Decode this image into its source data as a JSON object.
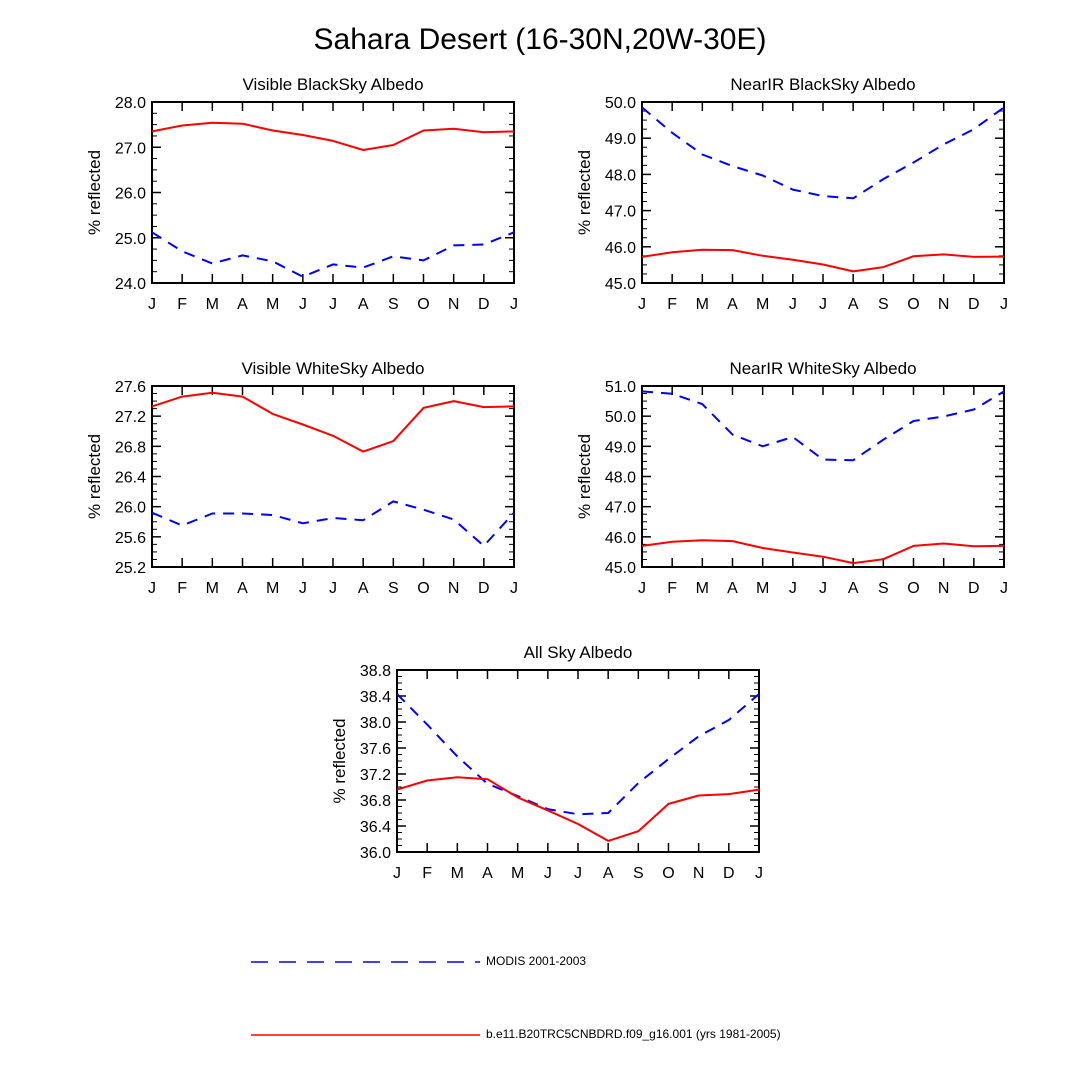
{
  "title": "Sahara Desert (16-30N,20W-30E)",
  "chart_data": [
    {
      "type": "line",
      "title": "Visible BlackSky Albedo",
      "ylabel": "% reflected",
      "xlabel": "",
      "categories": [
        "J",
        "F",
        "M",
        "A",
        "M",
        "J",
        "J",
        "A",
        "S",
        "O",
        "N",
        "D",
        "J"
      ],
      "ylim": [
        24.0,
        28.0
      ],
      "yticks": [
        "24.0",
        "25.0",
        "26.0",
        "27.0",
        "28.0"
      ],
      "series": [
        {
          "name": "MODIS 2001-2003",
          "color": "#0000ff",
          "dash": "dashed",
          "values": [
            25.12,
            24.7,
            24.43,
            24.61,
            24.48,
            24.14,
            24.41,
            24.34,
            24.59,
            24.5,
            24.83,
            24.85,
            25.12
          ]
        },
        {
          "name": "b.e11.B20TRC5CNBDRD.f09_g16.001 (yrs 1981-2005)",
          "color": "#ff0000",
          "dash": "solid",
          "values": [
            27.35,
            27.48,
            27.54,
            27.52,
            27.37,
            27.27,
            27.14,
            26.94,
            27.05,
            27.37,
            27.41,
            27.33,
            27.35
          ]
        }
      ]
    },
    {
      "type": "line",
      "title": "NearIR BlackSky Albedo",
      "ylabel": "% reflected",
      "xlabel": "",
      "categories": [
        "J",
        "F",
        "M",
        "A",
        "M",
        "J",
        "J",
        "A",
        "S",
        "O",
        "N",
        "D",
        "J"
      ],
      "ylim": [
        45.0,
        50.0
      ],
      "yticks": [
        "45.0",
        "46.0",
        "47.0",
        "48.0",
        "49.0",
        "50.0"
      ],
      "series": [
        {
          "name": "MODIS 2001-2003",
          "color": "#0000ff",
          "dash": "dashed",
          "values": [
            49.85,
            49.15,
            48.55,
            48.23,
            47.97,
            47.58,
            47.4,
            47.34,
            47.87,
            48.33,
            48.83,
            49.25,
            49.85
          ]
        },
        {
          "name": "b.e11.B20TRC5CNBDRD.f09_g16.001 (yrs 1981-2005)",
          "color": "#ff0000",
          "dash": "solid",
          "values": [
            45.72,
            45.85,
            45.92,
            45.91,
            45.75,
            45.64,
            45.51,
            45.32,
            45.44,
            45.74,
            45.79,
            45.72,
            45.73
          ]
        }
      ]
    },
    {
      "type": "line",
      "title": "Visible WhiteSky Albedo",
      "ylabel": "% reflected",
      "xlabel": "",
      "categories": [
        "J",
        "F",
        "M",
        "A",
        "M",
        "J",
        "J",
        "A",
        "S",
        "O",
        "N",
        "D",
        "J"
      ],
      "ylim": [
        25.2,
        27.6
      ],
      "yticks": [
        "25.2",
        "25.6",
        "26.0",
        "26.4",
        "26.8",
        "27.2",
        "27.6"
      ],
      "series": [
        {
          "name": "MODIS 2001-2003",
          "color": "#0000ff",
          "dash": "dashed",
          "values": [
            25.92,
            25.75,
            25.91,
            25.91,
            25.89,
            25.78,
            25.85,
            25.82,
            26.07,
            25.96,
            25.83,
            25.48,
            25.92
          ]
        },
        {
          "name": "b.e11.B20TRC5CNBDRD.f09_g16.001 (yrs 1981-2005)",
          "color": "#ff0000",
          "dash": "solid",
          "values": [
            27.33,
            27.46,
            27.51,
            27.46,
            27.23,
            27.09,
            26.94,
            26.73,
            26.87,
            27.31,
            27.4,
            27.32,
            27.33
          ]
        }
      ]
    },
    {
      "type": "line",
      "title": "NearIR WhiteSky Albedo",
      "ylabel": "% reflected",
      "xlabel": "",
      "categories": [
        "J",
        "F",
        "M",
        "A",
        "M",
        "J",
        "J",
        "A",
        "S",
        "O",
        "N",
        "D",
        "J"
      ],
      "ylim": [
        45.0,
        51.0
      ],
      "yticks": [
        "45.0",
        "46.0",
        "47.0",
        "48.0",
        "49.0",
        "50.0",
        "51.0"
      ],
      "series": [
        {
          "name": "MODIS 2001-2003",
          "color": "#0000ff",
          "dash": "dashed",
          "values": [
            50.82,
            50.74,
            50.4,
            49.39,
            49.0,
            49.31,
            48.56,
            48.54,
            49.22,
            49.84,
            49.99,
            50.22,
            50.82
          ]
        },
        {
          "name": "b.e11.B20TRC5CNBDRD.f09_g16.001 (yrs 1981-2005)",
          "color": "#ff0000",
          "dash": "solid",
          "values": [
            45.7,
            45.84,
            45.89,
            45.86,
            45.63,
            45.48,
            45.34,
            45.13,
            45.26,
            45.7,
            45.78,
            45.69,
            45.7
          ]
        }
      ]
    },
    {
      "type": "line",
      "title": "All Sky Albedo",
      "ylabel": "% reflected",
      "xlabel": "",
      "categories": [
        "J",
        "F",
        "M",
        "A",
        "M",
        "J",
        "J",
        "A",
        "S",
        "O",
        "N",
        "D",
        "J"
      ],
      "ylim": [
        36.0,
        38.8
      ],
      "yticks": [
        "36.0",
        "36.4",
        "36.8",
        "37.2",
        "37.6",
        "38.0",
        "38.4",
        "38.8"
      ],
      "series": [
        {
          "name": "MODIS 2001-2003",
          "color": "#0000ff",
          "dash": "dashed",
          "values": [
            38.43,
            37.96,
            37.47,
            37.05,
            36.86,
            36.66,
            36.58,
            36.6,
            37.06,
            37.43,
            37.78,
            38.03,
            38.43
          ]
        },
        {
          "name": "b.e11.B20TRC5CNBDRD.f09_g16.001 (yrs 1981-2005)",
          "color": "#ff0000",
          "dash": "solid",
          "values": [
            36.96,
            37.1,
            37.15,
            37.12,
            36.84,
            36.64,
            36.43,
            36.17,
            36.32,
            36.74,
            36.87,
            36.89,
            36.96
          ]
        }
      ]
    }
  ],
  "legend": {
    "position": "bottom",
    "items": [
      {
        "label": "MODIS 2001-2003",
        "color": "#0000ff",
        "dash": "dashed"
      },
      {
        "label": "b.e11.B20TRC5CNBDRD.f09_g16.001 (yrs 1981-2005)",
        "color": "#ff0000",
        "dash": "solid"
      }
    ]
  }
}
